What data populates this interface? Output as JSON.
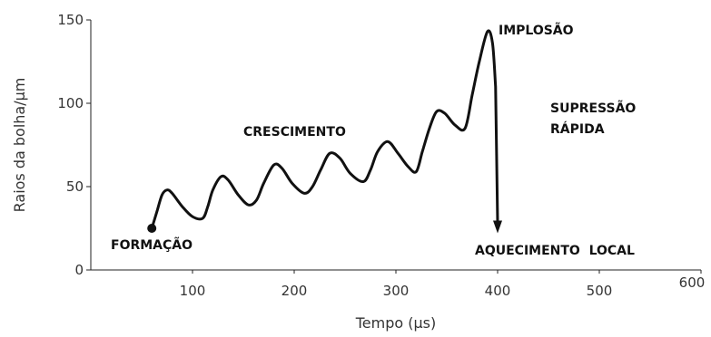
{
  "chart_data": {
    "type": "line",
    "xlabel": "Tempo (µs)",
    "ylabel": "Raios da bolha/µm",
    "xlim": [
      0,
      600
    ],
    "ylim": [
      0,
      150
    ],
    "x_ticks": [
      "100",
      "200",
      "300",
      "400",
      "500",
      "600"
    ],
    "y_ticks": [
      "0",
      "50",
      "100",
      "150"
    ],
    "series": [
      {
        "x": [
          60,
          65,
          70,
          75,
          80,
          90,
          100,
          110,
          115,
          120,
          128,
          135,
          145,
          155,
          163,
          170,
          180,
          188,
          198,
          210,
          218,
          226,
          235,
          245,
          255,
          268,
          275,
          282,
          292,
          302,
          312,
          320,
          326,
          333,
          340,
          348,
          358,
          368,
          375,
          382,
          390,
          395,
          398,
          400
        ],
        "y": [
          25,
          35,
          45,
          48,
          46,
          38,
          32,
          31,
          38,
          48,
          56,
          54,
          45,
          39,
          42,
          52,
          63,
          61,
          52,
          46,
          50,
          60,
          70,
          67,
          58,
          53,
          60,
          71,
          77,
          70,
          62,
          59,
          71,
          85,
          95,
          94,
          87,
          85,
          105,
          125,
          143,
          136,
          110,
          22
        ]
      }
    ],
    "annotations": [
      "FORMAÇÃO",
      "CRESCIMENTO",
      "IMPLOSÃO",
      "SUPRESSÃO",
      "RÁPIDA",
      "AQUECIMENTO  LOCAL"
    ]
  }
}
